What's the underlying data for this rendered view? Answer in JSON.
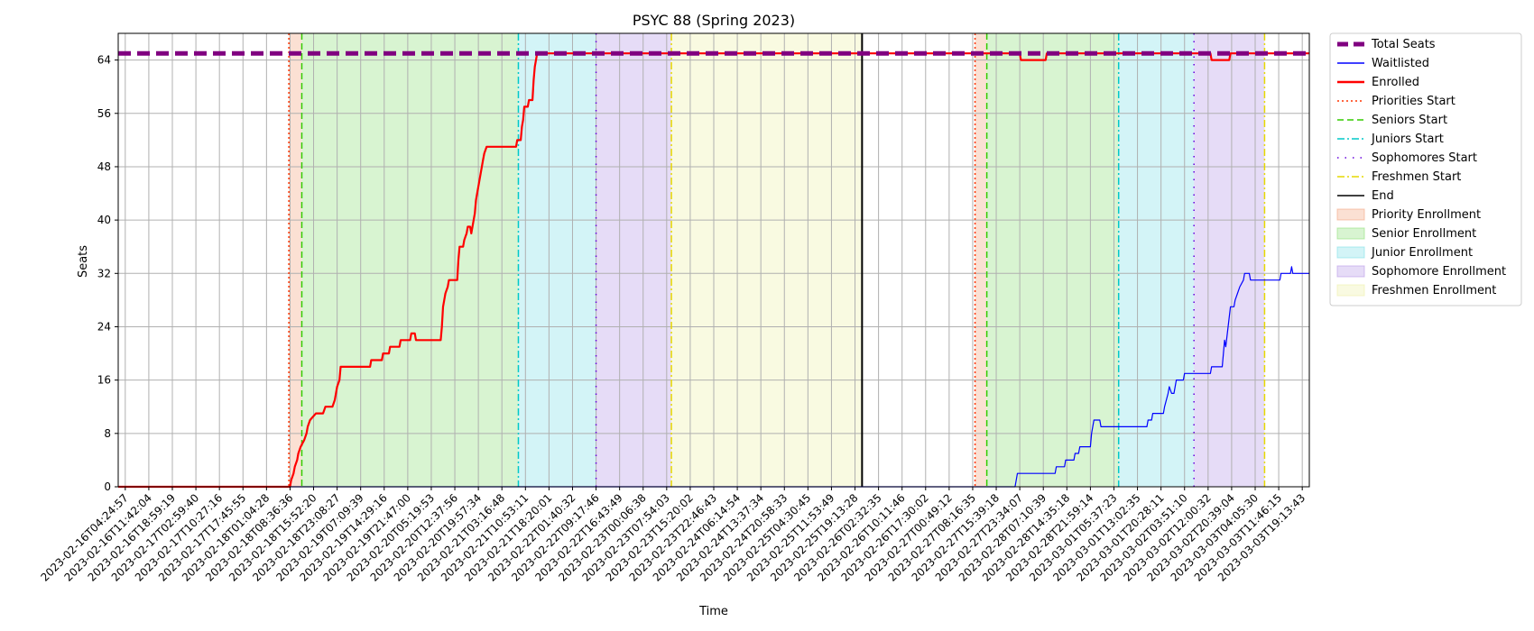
{
  "chart_data": {
    "type": "line",
    "title": "PSYC 88 (Spring 2023)",
    "xlabel": "Time",
    "ylabel": "Seats",
    "ylim": [
      0,
      68
    ],
    "yticks": [
      0,
      8,
      16,
      24,
      32,
      40,
      48,
      56,
      64
    ],
    "xlim": [
      -0.3,
      50.3
    ],
    "grid": true,
    "legend_position": "outside-right",
    "xticks": [
      "2023-02-16T04:24:57",
      "2023-02-16T11:42:04",
      "2023-02-16T18:59:19",
      "2023-02-17T02:59:40",
      "2023-02-17T10:27:16",
      "2023-02-17T17:45:55",
      "2023-02-18T01:04:28",
      "2023-02-18T08:36:36",
      "2023-02-18T15:52:20",
      "2023-02-18T23:08:27",
      "2023-02-19T07:09:39",
      "2023-02-19T14:29:16",
      "2023-02-19T21:47:00",
      "2023-02-20T05:19:53",
      "2023-02-20T12:37:56",
      "2023-02-20T19:57:34",
      "2023-02-21T03:16:48",
      "2023-02-21T10:53:11",
      "2023-02-21T18:20:01",
      "2023-02-22T01:40:32",
      "2023-02-22T09:17:46",
      "2023-02-22T16:43:49",
      "2023-02-23T00:06:38",
      "2023-02-23T07:54:03",
      "2023-02-23T15:20:02",
      "2023-02-23T22:46:43",
      "2023-02-24T06:14:54",
      "2023-02-24T13:37:34",
      "2023-02-24T20:58:33",
      "2023-02-25T04:30:45",
      "2023-02-25T11:53:49",
      "2023-02-25T19:13:28",
      "2023-02-26T02:32:35",
      "2023-02-26T10:11:46",
      "2023-02-26T17:30:02",
      "2023-02-27T00:49:12",
      "2023-02-27T08:16:35",
      "2023-02-27T15:39:18",
      "2023-02-27T23:34:07",
      "2023-02-28T07:10:39",
      "2023-02-28T14:35:18",
      "2023-02-28T21:59:14",
      "2023-03-01T05:37:23",
      "2023-03-01T13:02:35",
      "2023-03-01T20:28:11",
      "2023-03-02T03:51:10",
      "2023-03-02T12:00:32",
      "2023-03-02T20:39:04",
      "2023-03-03T04:05:30",
      "2023-03-03T11:46:15",
      "2023-03-03T19:13:43"
    ],
    "series": [
      {
        "name": "Total Seats",
        "color": "#800080",
        "style": "dashed-thick",
        "points": [
          [
            -0.3,
            65
          ],
          [
            50.3,
            65
          ]
        ]
      },
      {
        "name": "Enrolled",
        "color": "#ff0000",
        "style": "solid",
        "points": [
          [
            -0.3,
            0
          ],
          [
            7.0,
            0
          ],
          [
            7.05,
            1
          ],
          [
            7.15,
            2
          ],
          [
            7.2,
            3
          ],
          [
            7.3,
            4
          ],
          [
            7.35,
            5
          ],
          [
            7.45,
            6
          ],
          [
            7.6,
            7
          ],
          [
            7.7,
            8
          ],
          [
            7.75,
            9
          ],
          [
            7.85,
            10
          ],
          [
            8.1,
            11
          ],
          [
            8.4,
            11
          ],
          [
            8.5,
            12
          ],
          [
            8.8,
            12
          ],
          [
            8.9,
            13
          ],
          [
            8.95,
            14
          ],
          [
            9.0,
            15
          ],
          [
            9.1,
            16
          ],
          [
            9.15,
            18
          ],
          [
            10.4,
            18
          ],
          [
            10.45,
            19
          ],
          [
            10.9,
            19
          ],
          [
            10.95,
            20
          ],
          [
            11.2,
            20
          ],
          [
            11.25,
            21
          ],
          [
            11.65,
            21
          ],
          [
            11.7,
            22
          ],
          [
            12.1,
            22
          ],
          [
            12.15,
            23
          ],
          [
            12.3,
            23
          ],
          [
            12.35,
            22
          ],
          [
            13.4,
            22
          ],
          [
            13.45,
            24
          ],
          [
            13.5,
            27
          ],
          [
            13.55,
            28
          ],
          [
            13.6,
            29
          ],
          [
            13.7,
            30
          ],
          [
            13.75,
            31
          ],
          [
            14.1,
            31
          ],
          [
            14.15,
            34
          ],
          [
            14.2,
            36
          ],
          [
            14.35,
            36
          ],
          [
            14.4,
            37
          ],
          [
            14.5,
            38
          ],
          [
            14.55,
            39
          ],
          [
            14.65,
            39
          ],
          [
            14.7,
            38
          ],
          [
            14.75,
            39
          ],
          [
            14.8,
            40
          ],
          [
            14.85,
            41
          ],
          [
            14.9,
            43
          ],
          [
            14.95,
            44
          ],
          [
            15.0,
            45
          ],
          [
            15.05,
            46
          ],
          [
            15.1,
            47
          ],
          [
            15.15,
            48
          ],
          [
            15.2,
            49
          ],
          [
            15.25,
            50
          ],
          [
            15.35,
            51
          ],
          [
            16.6,
            51
          ],
          [
            16.65,
            52
          ],
          [
            16.8,
            52
          ],
          [
            16.85,
            54
          ],
          [
            16.9,
            55
          ],
          [
            16.95,
            57
          ],
          [
            17.1,
            57
          ],
          [
            17.15,
            58
          ],
          [
            17.3,
            58
          ],
          [
            17.35,
            61
          ],
          [
            17.4,
            63
          ],
          [
            17.45,
            64
          ],
          [
            17.5,
            65
          ],
          [
            38.0,
            65
          ],
          [
            38.05,
            64
          ],
          [
            39.1,
            64
          ],
          [
            39.15,
            65
          ],
          [
            46.1,
            65
          ],
          [
            46.15,
            64
          ],
          [
            46.9,
            64
          ],
          [
            46.95,
            65
          ],
          [
            50.3,
            65
          ]
        ]
      },
      {
        "name": "Waitlisted",
        "color": "#0000ff",
        "style": "solid",
        "points": [
          [
            -0.3,
            0
          ],
          [
            37.8,
            0
          ],
          [
            37.85,
            1
          ],
          [
            37.9,
            2
          ],
          [
            39.5,
            2
          ],
          [
            39.55,
            3
          ],
          [
            39.9,
            3
          ],
          [
            39.95,
            4
          ],
          [
            40.3,
            4
          ],
          [
            40.35,
            5
          ],
          [
            40.5,
            5
          ],
          [
            40.55,
            6
          ],
          [
            41.0,
            6
          ],
          [
            41.05,
            8
          ],
          [
            41.1,
            9
          ],
          [
            41.15,
            10
          ],
          [
            41.4,
            10
          ],
          [
            41.45,
            9
          ],
          [
            43.4,
            9
          ],
          [
            43.45,
            10
          ],
          [
            43.6,
            10
          ],
          [
            43.65,
            11
          ],
          [
            44.1,
            11
          ],
          [
            44.15,
            12
          ],
          [
            44.3,
            14
          ],
          [
            44.35,
            15
          ],
          [
            44.45,
            14
          ],
          [
            44.55,
            14
          ],
          [
            44.6,
            15
          ],
          [
            44.65,
            16
          ],
          [
            44.95,
            16
          ],
          [
            45.0,
            17
          ],
          [
            46.1,
            17
          ],
          [
            46.15,
            18
          ],
          [
            46.6,
            18
          ],
          [
            46.65,
            20
          ],
          [
            46.7,
            22
          ],
          [
            46.75,
            21
          ],
          [
            46.85,
            24
          ],
          [
            46.95,
            27
          ],
          [
            47.1,
            27
          ],
          [
            47.15,
            28
          ],
          [
            47.25,
            29
          ],
          [
            47.35,
            30
          ],
          [
            47.5,
            31
          ],
          [
            47.55,
            32
          ],
          [
            47.75,
            32
          ],
          [
            47.8,
            31
          ],
          [
            49.05,
            31
          ],
          [
            49.1,
            32
          ],
          [
            49.5,
            32
          ],
          [
            49.55,
            33
          ],
          [
            49.6,
            32
          ],
          [
            50.3,
            32
          ]
        ]
      }
    ],
    "phase_lines": [
      {
        "name": "Priorities Start",
        "color": "#ff3300",
        "style": "dotted",
        "x": [
          6.95,
          36.1
        ]
      },
      {
        "name": "Seniors Start",
        "color": "#33cc00",
        "style": "dashed",
        "x": [
          7.5,
          36.6
        ]
      },
      {
        "name": "Juniors Start",
        "color": "#00c8c8",
        "style": "dashdot",
        "x": [
          16.7,
          42.2
        ]
      },
      {
        "name": "Sophomores Start",
        "color": "#6600dd",
        "style": "loosedot",
        "x": [
          20.0,
          45.4
        ]
      },
      {
        "name": "Freshmen Start",
        "color": "#e6d800",
        "style": "dashdot",
        "x": [
          23.2,
          48.4
        ]
      },
      {
        "name": "End",
        "color": "#000000",
        "style": "solid",
        "x": [
          31.3
        ]
      }
    ],
    "phase_spans": [
      {
        "name": "Priority Enrollment",
        "color": "#f4a582",
        "ranges": [
          [
            6.95,
            7.5
          ],
          [
            36.1,
            36.6
          ]
        ]
      },
      {
        "name": "Senior Enrollment",
        "color": "#90e07a",
        "ranges": [
          [
            7.5,
            16.7
          ],
          [
            36.6,
            42.2
          ]
        ]
      },
      {
        "name": "Junior Enrollment",
        "color": "#80e0e8",
        "ranges": [
          [
            16.7,
            20.0
          ],
          [
            42.2,
            45.4
          ]
        ]
      },
      {
        "name": "Sophomore Enrollment",
        "color": "#b89ae8",
        "ranges": [
          [
            20.0,
            23.2
          ],
          [
            45.4,
            48.4
          ]
        ]
      },
      {
        "name": "Freshmen Enrollment",
        "color": "#eef0a8",
        "ranges": [
          [
            23.2,
            31.3
          ]
        ]
      }
    ],
    "legend": [
      {
        "label": "Total Seats",
        "kind": "line",
        "color": "#800080",
        "style": "dashed-thick"
      },
      {
        "label": "Waitlisted",
        "kind": "line",
        "color": "#0000ff",
        "style": "solid"
      },
      {
        "label": "Enrolled",
        "kind": "line",
        "color": "#ff0000",
        "style": "solid-thick"
      },
      {
        "label": "Priorities Start",
        "kind": "line",
        "color": "#ff3300",
        "style": "dotted"
      },
      {
        "label": "Seniors Start",
        "kind": "line",
        "color": "#33cc00",
        "style": "dashed"
      },
      {
        "label": "Juniors Start",
        "kind": "line",
        "color": "#00c8c8",
        "style": "dashdot"
      },
      {
        "label": "Sophomores Start",
        "kind": "line",
        "color": "#6600dd",
        "style": "loosedot"
      },
      {
        "label": "Freshmen Start",
        "kind": "line",
        "color": "#e6d800",
        "style": "dashdot"
      },
      {
        "label": "End",
        "kind": "line",
        "color": "#000000",
        "style": "solid"
      },
      {
        "label": "Priority Enrollment",
        "kind": "patch",
        "color": "#f4a582"
      },
      {
        "label": "Senior Enrollment",
        "kind": "patch",
        "color": "#90e07a"
      },
      {
        "label": "Junior Enrollment",
        "kind": "patch",
        "color": "#80e0e8"
      },
      {
        "label": "Sophomore Enrollment",
        "kind": "patch",
        "color": "#b89ae8"
      },
      {
        "label": "Freshmen Enrollment",
        "kind": "patch",
        "color": "#eef0a8"
      }
    ]
  }
}
